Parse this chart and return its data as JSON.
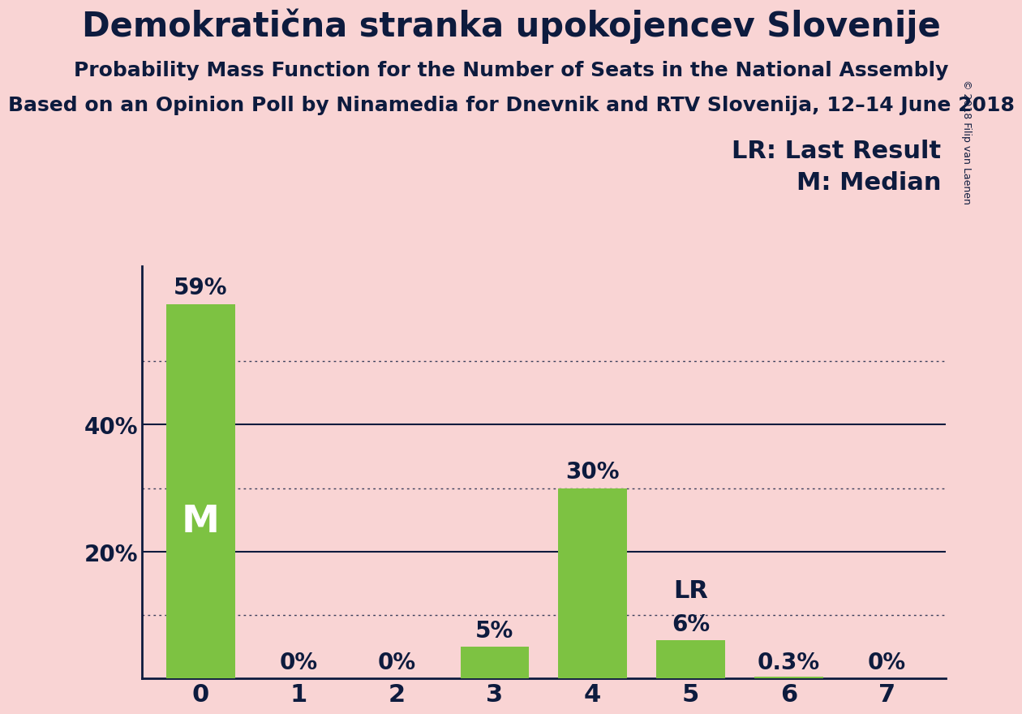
{
  "title": "Demokratična stranka upokojencev Slovenije",
  "subtitle": "Probability Mass Function for the Number of Seats in the National Assembly",
  "source": "Based on an Opinion Poll by Ninamedia for Dnevnik and RTV Slovenija, 12–14 June 2018",
  "copyright": "© 2018 Filip van Laenen",
  "categories": [
    0,
    1,
    2,
    3,
    4,
    5,
    6,
    7
  ],
  "values": [
    0.59,
    0.0,
    0.0,
    0.05,
    0.3,
    0.06,
    0.003,
    0.0
  ],
  "bar_labels": [
    "59%",
    "0%",
    "0%",
    "5%",
    "30%",
    "6%",
    "0.3%",
    "0%"
  ],
  "bar_color": "#7dc242",
  "background_color": "#f9d4d4",
  "text_color": "#0d1b3e",
  "median_seat": 0,
  "last_result_seat": 5,
  "median_label": "M",
  "lr_label": "LR",
  "legend_lr": "LR: Last Result",
  "legend_m": "M: Median",
  "ylim": [
    0,
    0.65
  ],
  "yticks": [
    0.2,
    0.4
  ],
  "ytick_labels": [
    "20%",
    "40%"
  ],
  "dotted_gridlines": [
    0.1,
    0.3,
    0.5
  ],
  "solid_gridlines": [
    0.2,
    0.4
  ],
  "title_fontsize": 30,
  "subtitle_fontsize": 18,
  "source_fontsize": 18,
  "bar_label_fontsize": 20,
  "annotation_fontsize": 22,
  "ytick_fontsize": 20,
  "xtick_fontsize": 22,
  "m_fontsize": 34,
  "copyright_fontsize": 9
}
